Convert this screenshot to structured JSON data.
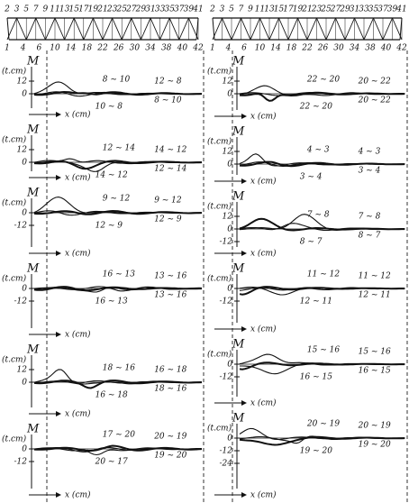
{
  "columns": [
    {
      "truss": {
        "top_nodes": [
          "2",
          "3",
          "5",
          "7",
          "9",
          "11",
          "13",
          "15",
          "17",
          "19",
          "21",
          "23",
          "25",
          "27",
          "29",
          "31",
          "33",
          "35",
          "37",
          "39",
          "41"
        ],
        "bottom_nodes": [
          "1",
          "4",
          "6",
          "10",
          "14",
          "18",
          "22",
          "26",
          "30",
          "34",
          "38",
          "40",
          "42"
        ]
      },
      "panels": [
        {
          "y_label": "M",
          "unit": "(t.cm)",
          "ticks": [
            "12",
            "0"
          ],
          "x_label": "x (cm)",
          "curve_labels": [
            "8 ~ 10",
            "12 ~ 8",
            "8 ~ 10",
            "10 ~ 8"
          ]
        },
        {
          "y_label": "M",
          "unit": "(t.cm)",
          "ticks": [
            "12",
            "0"
          ],
          "x_label": "x (cm)",
          "curve_labels": [
            "12 ~ 14",
            "14 ~ 12",
            "12 ~ 14",
            "14 ~ 12"
          ]
        },
        {
          "y_label": "M",
          "unit": "(t.cm)",
          "ticks": [
            "0",
            "-12"
          ],
          "x_label": "x (cm)",
          "curve_labels": [
            "9 ~ 12",
            "9 ~ 12",
            "12 ~ 9",
            "12 ~ 9"
          ]
        },
        {
          "y_label": "M",
          "unit": "(t.cm)",
          "ticks": [
            "0",
            "-12"
          ],
          "x_label": "x (cm)",
          "curve_labels": [
            "16 ~ 13",
            "13 ~ 16",
            "13 ~ 16",
            "16 ~ 13"
          ]
        },
        {
          "y_label": "M",
          "unit": "(t.cm)",
          "ticks": [
            "12",
            "0"
          ],
          "x_label": "x (cm)",
          "curve_labels": [
            "18 ~ 16",
            "16 ~ 18",
            "18 ~ 16",
            "16 ~ 18"
          ]
        },
        {
          "y_label": "M",
          "unit": "(t.cm)",
          "ticks": [
            "0",
            "-12"
          ],
          "x_label": "x (cm)",
          "curve_labels": [
            "17 ~ 20",
            "20 ~ 19",
            "19 ~ 20",
            "20 ~ 17"
          ]
        }
      ]
    },
    {
      "truss": {
        "top_nodes": [
          "2",
          "3",
          "5",
          "7",
          "9",
          "11",
          "13",
          "15",
          "17",
          "19",
          "21",
          "23",
          "25",
          "27",
          "29",
          "31",
          "33",
          "35",
          "37",
          "39",
          "41"
        ],
        "bottom_nodes": [
          "1",
          "4",
          "6",
          "10",
          "14",
          "18",
          "22",
          "26",
          "30",
          "34",
          "38",
          "40",
          "42"
        ]
      },
      "panels": [
        {
          "y_label": "M",
          "unit": "(t.cm)",
          "ticks": [
            "12",
            "0"
          ],
          "x_label": "x (cm)",
          "curve_labels": [
            "22 ~ 20",
            "20 ~ 22",
            "20 ~ 22",
            "22 ~ 20"
          ]
        },
        {
          "y_label": "M",
          "unit": "(t.cm)",
          "ticks": [
            "12",
            "0"
          ],
          "x_label": "x (cm)",
          "curve_labels": [
            "4 ~ 3",
            "4 ~ 3",
            "3 ~ 4",
            "3 ~ 4"
          ]
        },
        {
          "y_label": "M",
          "unit": "(t.cm)",
          "ticks": [
            "12",
            "0",
            "-12"
          ],
          "x_label": "x (cm)",
          "curve_labels": [
            "7 ~ 8",
            "7 ~ 8",
            "8 ~ 7",
            "8 ~ 7"
          ]
        },
        {
          "y_label": "M",
          "unit": "(t.cm)",
          "ticks": [
            "0",
            "-12"
          ],
          "x_label": "x (cm)",
          "curve_labels": [
            "11 ~ 12",
            "11 ~ 12",
            "12 ~ 11",
            "12 ~ 11"
          ]
        },
        {
          "y_label": "M",
          "unit": "(t.cm)",
          "ticks": [
            "0",
            "-12"
          ],
          "x_label": "x (cm)",
          "curve_labels": [
            "15 ~ 16",
            "15 ~ 16",
            "16 ~ 15",
            "16 ~ 15"
          ]
        },
        {
          "y_label": "M",
          "unit": "(t.cm)",
          "ticks": [
            "0",
            "-12",
            "-24"
          ],
          "x_label": "x (cm)",
          "curve_labels": [
            "20 ~ 19",
            "20 ~ 19",
            "19 ~ 20",
            "19 ~ 20"
          ]
        }
      ]
    }
  ]
}
